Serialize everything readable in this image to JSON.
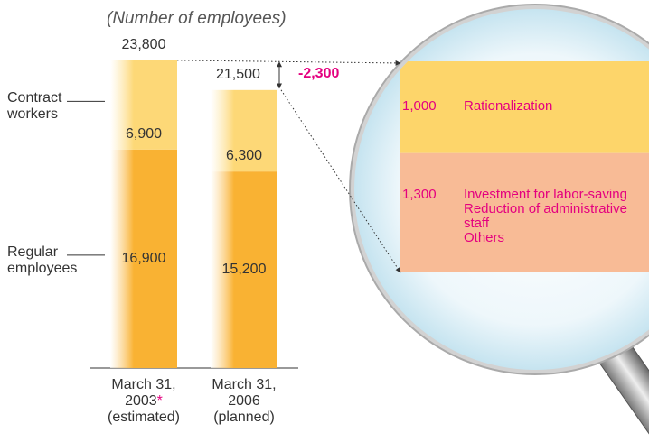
{
  "chart_data": {
    "type": "bar",
    "stacked": true,
    "axis_label": "(Number of employees)",
    "categories": [
      "March 31,\n2003",
      "March 31,\n2006"
    ],
    "category_notes": [
      "(estimated)",
      "(planned)"
    ],
    "footnote_marker": "*",
    "series": [
      {
        "name": "Regular employees",
        "color": "#f9b233",
        "values": [
          16900,
          15200
        ],
        "value_labels": [
          "16,900",
          "15,200"
        ]
      },
      {
        "name": "Contract workers",
        "color": "#fdd877",
        "values": [
          6900,
          6300
        ],
        "value_labels": [
          "6,900",
          "6,300"
        ]
      }
    ],
    "totals": [
      23800,
      21500
    ],
    "total_labels": [
      "23,800",
      "21,500"
    ],
    "ylim": [
      0,
      24000
    ],
    "difference": {
      "value": -2300,
      "label": "-2,300"
    },
    "breakdown": [
      {
        "value": 1000,
        "label": "1,000",
        "color": "#fdd56a",
        "descriptions": [
          "Rationalization"
        ]
      },
      {
        "value": 1300,
        "label": "1,300",
        "color": "#f8bb96",
        "descriptions": [
          "Investment for labor-saving",
          "Reduction of administrative staff",
          "Others"
        ]
      }
    ]
  }
}
